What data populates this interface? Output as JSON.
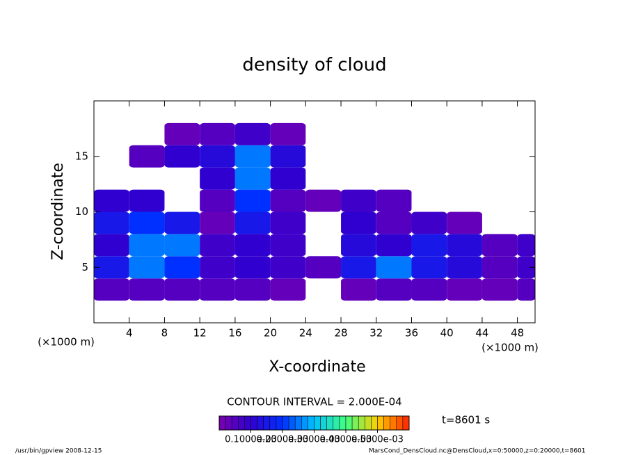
{
  "chart_data": {
    "type": "contour",
    "title": "density of cloud",
    "x_label": "X-coordinate",
    "y_label": "Z-coordinate",
    "x_unit": "(×1000 m)",
    "y_unit": "(×1000 m)",
    "xlim": [
      0,
      50
    ],
    "ylim": [
      0,
      20
    ],
    "xticks": [
      4,
      8,
      12,
      16,
      20,
      24,
      28,
      32,
      36,
      40,
      44,
      48
    ],
    "yticks": [
      5,
      10,
      15
    ],
    "x": [
      2,
      6,
      10,
      14,
      18,
      22,
      26,
      30,
      34,
      38,
      42,
      46,
      50
    ],
    "y": [
      1,
      3,
      5,
      7,
      9,
      11,
      13,
      15,
      17,
      19
    ],
    "cell_size": [
      4,
      2
    ],
    "z": [
      [
        0,
        0,
        0,
        0,
        0,
        0,
        0,
        0,
        0,
        0,
        0,
        0,
        0
      ],
      [
        5e-05,
        5e-05,
        5e-05,
        5e-05,
        5e-05,
        3e-05,
        0,
        3e-05,
        5e-05,
        5e-05,
        3e-05,
        3e-05,
        5e-05
      ],
      [
        0.00015,
        0.00025,
        0.0002,
        8e-05,
        0.0001,
        8e-05,
        5e-05,
        0.00015,
        0.00025,
        0.00015,
        0.00012,
        5e-05,
        8e-05
      ],
      [
        0.0001,
        0.00025,
        0.00025,
        8e-05,
        0.0001,
        8e-05,
        0,
        0.00012,
        0.0001,
        0.00015,
        0.00012,
        5e-05,
        8e-05
      ],
      [
        0.00015,
        0.0002,
        0.00015,
        3e-05,
        0.00015,
        8e-05,
        0,
        0.0001,
        5e-05,
        8e-05,
        3e-05,
        0,
        0
      ],
      [
        0.0001,
        0.0001,
        0,
        5e-05,
        0.0002,
        5e-05,
        3e-05,
        8e-05,
        5e-05,
        0,
        0,
        0,
        0
      ],
      [
        0,
        0,
        0,
        0.0001,
        0.00025,
        0.0001,
        0,
        0,
        0,
        0,
        0,
        0,
        0
      ],
      [
        0,
        5e-05,
        0.0001,
        0.00012,
        0.00025,
        0.00012,
        0,
        0,
        0,
        0,
        0,
        0,
        0
      ],
      [
        0,
        0,
        3e-05,
        5e-05,
        8e-05,
        3e-05,
        0,
        0,
        0,
        0,
        0,
        0,
        0
      ],
      [
        0,
        0,
        0,
        0,
        0,
        0,
        0,
        0,
        0,
        0,
        0,
        0,
        0
      ]
    ],
    "clim": [
      0,
      0.0006
    ],
    "colormap": [
      "#7a00b0",
      "#3000d0",
      "#0030ff",
      "#00c0ff",
      "#40ff80",
      "#ffd000",
      "#ff2000"
    ],
    "colorbar_ticks": [
      {
        "value": 0.0001,
        "label": "0.1000e-03"
      },
      {
        "value": 0.0002,
        "label": "0.2000e-03"
      },
      {
        "value": 0.0003,
        "label": "0.3000e-03"
      },
      {
        "value": 0.0004,
        "label": "0.4000e-03"
      },
      {
        "value": 0.0005,
        "label": "0.5000e-03"
      }
    ],
    "contour_interval": "CONTOUR INTERVAL = 2.000E-04",
    "time_label": "t=8601 s",
    "footer_left": "/usr/bin/gpview   2008-12-15",
    "footer_right": "MarsCond_DensCloud.nc@DensCloud,x=0:50000,z=0:20000,t=8601"
  }
}
